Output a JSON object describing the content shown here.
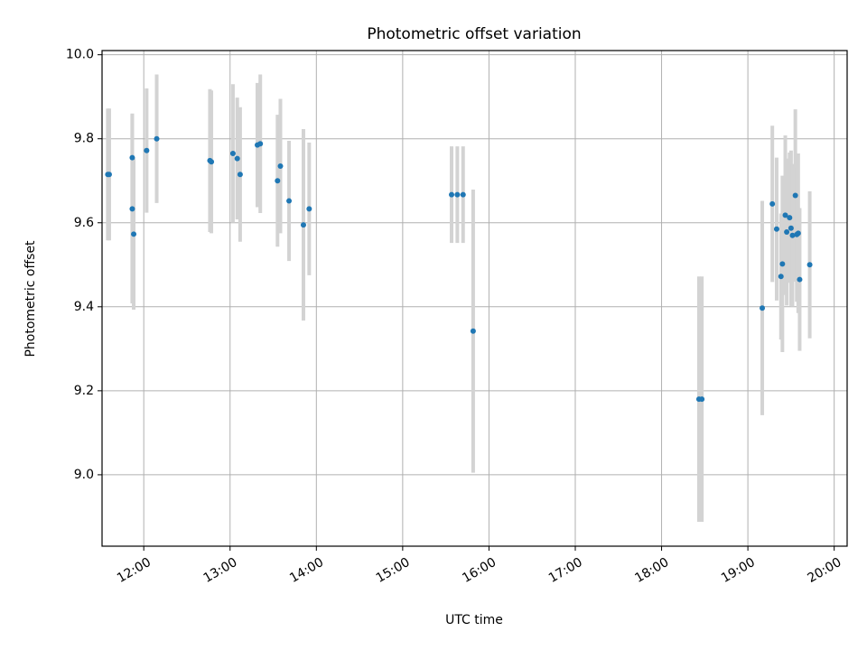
{
  "chart_data": {
    "type": "scatter",
    "title": "Photometric offset variation",
    "xlabel": "UTC time",
    "ylabel": "Photometric offset",
    "xlim": [
      "11:31",
      "20:09"
    ],
    "ylim": [
      8.83,
      10.01
    ],
    "x_ticks": [
      "12:00",
      "13:00",
      "14:00",
      "15:00",
      "16:00",
      "17:00",
      "18:00",
      "19:00",
      "20:00"
    ],
    "y_ticks": [
      "9.0",
      "9.2",
      "9.4",
      "9.6",
      "9.8",
      "10.0"
    ],
    "grid": true,
    "marker_color": "#1f77b4",
    "errorbar_color": "#d3d3d3",
    "points": [
      {
        "t": "11:35",
        "y": 9.715,
        "err": 0.157
      },
      {
        "t": "11:36",
        "y": 9.715,
        "err": 0.157
      },
      {
        "t": "11:52",
        "y": 9.755,
        "err": 0.105
      },
      {
        "t": "11:52",
        "y": 9.633,
        "err": 0.225
      },
      {
        "t": "11:53",
        "y": 9.573,
        "err": 0.18
      },
      {
        "t": "12:02",
        "y": 9.772,
        "err": 0.148
      },
      {
        "t": "12:09",
        "y": 9.8,
        "err": 0.153
      },
      {
        "t": "12:46",
        "y": 9.748,
        "err": 0.17
      },
      {
        "t": "12:47",
        "y": 9.745,
        "err": 0.17
      },
      {
        "t": "13:02",
        "y": 9.765,
        "err": 0.165
      },
      {
        "t": "13:05",
        "y": 9.753,
        "err": 0.145
      },
      {
        "t": "13:07",
        "y": 9.715,
        "err": 0.16
      },
      {
        "t": "13:19",
        "y": 9.785,
        "err": 0.148
      },
      {
        "t": "13:21",
        "y": 9.788,
        "err": 0.165
      },
      {
        "t": "13:33",
        "y": 9.7,
        "err": 0.157
      },
      {
        "t": "13:35",
        "y": 9.735,
        "err": 0.16
      },
      {
        "t": "13:41",
        "y": 9.652,
        "err": 0.143
      },
      {
        "t": "13:51",
        "y": 9.595,
        "err": 0.228
      },
      {
        "t": "13:55",
        "y": 9.633,
        "err": 0.158
      },
      {
        "t": "15:34",
        "y": 9.667,
        "err": 0.115
      },
      {
        "t": "15:38",
        "y": 9.667,
        "err": 0.115
      },
      {
        "t": "15:42",
        "y": 9.667,
        "err": 0.115
      },
      {
        "t": "15:49",
        "y": 9.342,
        "err": 0.337
      },
      {
        "t": "18:26",
        "y": 9.18,
        "err": 0.292
      },
      {
        "t": "18:28",
        "y": 9.18,
        "err": 0.292
      },
      {
        "t": "19:10",
        "y": 9.397,
        "err": 0.255
      },
      {
        "t": "19:17",
        "y": 9.645,
        "err": 0.186
      },
      {
        "t": "19:20",
        "y": 9.585,
        "err": 0.17
      },
      {
        "t": "19:23",
        "y": 9.472,
        "err": 0.15
      },
      {
        "t": "19:24",
        "y": 9.502,
        "err": 0.21
      },
      {
        "t": "19:26",
        "y": 9.618,
        "err": 0.19
      },
      {
        "t": "19:27",
        "y": 9.578,
        "err": 0.175
      },
      {
        "t": "19:29",
        "y": 9.612,
        "err": 0.155
      },
      {
        "t": "19:30",
        "y": 9.587,
        "err": 0.185
      },
      {
        "t": "19:31",
        "y": 9.57,
        "err": 0.17
      },
      {
        "t": "19:33",
        "y": 9.665,
        "err": 0.205
      },
      {
        "t": "19:34",
        "y": 9.572,
        "err": 0.16
      },
      {
        "t": "19:35",
        "y": 9.575,
        "err": 0.19
      },
      {
        "t": "19:36",
        "y": 9.465,
        "err": 0.17
      },
      {
        "t": "19:43",
        "y": 9.5,
        "err": 0.175
      }
    ]
  }
}
